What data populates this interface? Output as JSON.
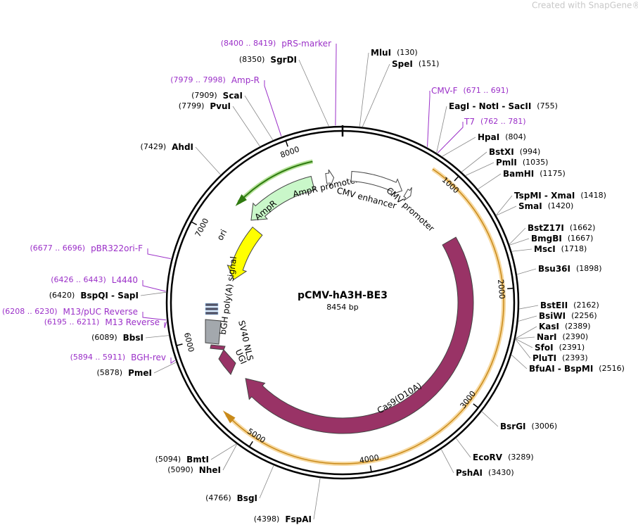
{
  "watermark": "Created with SnapGene®",
  "title": "pCMV-hA3H-BE3",
  "size": "8454 bp",
  "ticks": [
    1000,
    2000,
    3000,
    4000,
    5000,
    6000,
    7000,
    8000
  ],
  "enzymes": [
    {
      "name": "MluI",
      "site": "(130)"
    },
    {
      "name": "SpeI",
      "site": "(151)"
    },
    {
      "name": "EagI - NotI - SacII",
      "site": "(755)"
    },
    {
      "name": "HpaI",
      "site": "(804)"
    },
    {
      "name": "BstXI",
      "site": "(994)"
    },
    {
      "name": "PmlI",
      "site": "(1035)"
    },
    {
      "name": "BamHI",
      "site": "(1175)"
    },
    {
      "name": "TspMI - XmaI",
      "site": "(1418)"
    },
    {
      "name": "SmaI",
      "site": "(1420)"
    },
    {
      "name": "BstZ17I",
      "site": "(1662)"
    },
    {
      "name": "BmgBI",
      "site": "(1667)"
    },
    {
      "name": "MscI",
      "site": "(1718)"
    },
    {
      "name": "Bsu36I",
      "site": "(1898)"
    },
    {
      "name": "BstEII",
      "site": "(2162)"
    },
    {
      "name": "BsiWI",
      "site": "(2256)"
    },
    {
      "name": "KasI",
      "site": "(2389)"
    },
    {
      "name": "NarI",
      "site": "(2390)"
    },
    {
      "name": "SfoI",
      "site": "(2391)"
    },
    {
      "name": "PluTI",
      "site": "(2393)"
    },
    {
      "name": "BfuAI - BspMI",
      "site": "(2516)"
    },
    {
      "name": "BsrGI",
      "site": "(3006)"
    },
    {
      "name": "EcoRV",
      "site": "(3289)"
    },
    {
      "name": "PshAI",
      "site": "(3430)"
    },
    {
      "name": "FspAI",
      "site": "(4398)"
    },
    {
      "name": "BsgI",
      "site": "(4766)"
    },
    {
      "name": "NheI",
      "site": "(5090)"
    },
    {
      "name": "BmtI",
      "site": "(5094)"
    },
    {
      "name": "PmeI",
      "site": "(5878)"
    },
    {
      "name": "BbsI",
      "site": "(6089)"
    },
    {
      "name": "BspQI - SapI",
      "site": "(6420)"
    },
    {
      "name": "AhdI",
      "site": "(7429)"
    },
    {
      "name": "PvuI",
      "site": "(7799)"
    },
    {
      "name": "ScaI",
      "site": "(7909)"
    },
    {
      "name": "SgrDI",
      "site": "(8350)"
    }
  ],
  "primers": [
    {
      "name": "CMV-F",
      "range": "(671 .. 691)"
    },
    {
      "name": "T7",
      "range": "(762 .. 781)"
    },
    {
      "name": "BGH-rev",
      "range": "(5894 .. 5911)"
    },
    {
      "name": "M13 Reverse",
      "range": "(6195 .. 6211)"
    },
    {
      "name": "M13/pUC Reverse",
      "range": "(6208 .. 6230)"
    },
    {
      "name": "L4440",
      "range": "(6426 .. 6443)"
    },
    {
      "name": "pBR322ori-F",
      "range": "(6677 .. 6696)"
    },
    {
      "name": "Amp-R",
      "range": "(7979 .. 7998)"
    },
    {
      "name": "pRS-marker",
      "range": "(8400 .. 8419)"
    }
  ],
  "features": [
    {
      "label": "Cas9(D10A)"
    },
    {
      "label": "AmpR"
    },
    {
      "label": "AmpR promoter"
    },
    {
      "label": "CMV enhancer"
    },
    {
      "label": "CMV promoter"
    },
    {
      "label": "ori"
    },
    {
      "label": "bGH poly(A) signal"
    },
    {
      "label": "SV40 NLS"
    },
    {
      "label": "UGI"
    }
  ]
}
